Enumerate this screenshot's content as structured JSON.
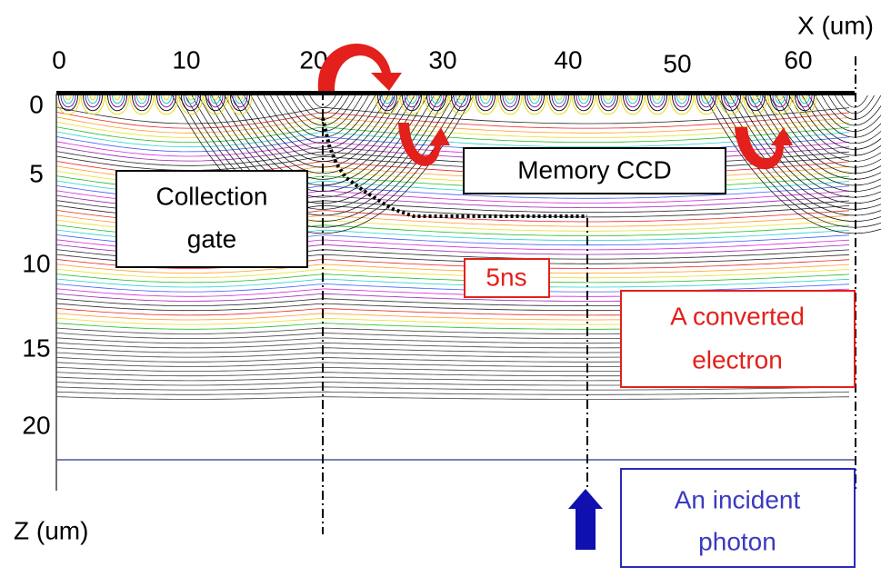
{
  "x_axis": {
    "label": "X (um)",
    "ticks": [
      "0",
      "10",
      "20",
      "30",
      "40",
      "50",
      "60"
    ]
  },
  "z_axis": {
    "label": "Z (um)",
    "ticks": [
      "0",
      "5",
      "10",
      "15",
      "20"
    ]
  },
  "annotations": {
    "collection_gate": [
      "Collection",
      "gate"
    ],
    "memory_ccd": "Memory CCD",
    "time": "5ns",
    "converted_electron": [
      "A converted",
      "electron"
    ],
    "incident_photon": [
      "An incident",
      "photon"
    ]
  }
}
